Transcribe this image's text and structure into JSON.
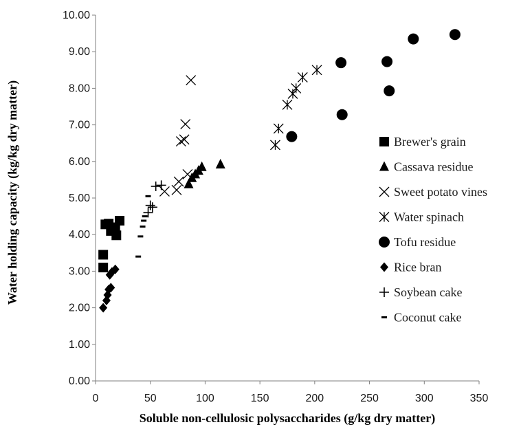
{
  "chart_data": {
    "type": "scatter",
    "xlabel": "Soluble non-cellulosic polysaccharides (g/kg dry matter)",
    "ylabel": "Water holding capacity (kg/kg dry matter)",
    "xlim": [
      0,
      350
    ],
    "ylim": [
      0,
      10
    ],
    "x_ticks": [
      "0",
      "50",
      "100",
      "150",
      "200",
      "250",
      "300",
      "350"
    ],
    "y_ticks": [
      "0.00",
      "1.00",
      "2.00",
      "3.00",
      "4.00",
      "5.00",
      "6.00",
      "7.00",
      "8.00",
      "9.00",
      "10.00"
    ],
    "grid": false,
    "legend_position": "right",
    "series": [
      {
        "name": "Brewer's grain",
        "marker": "square",
        "points": [
          [
            7,
            3.45
          ],
          [
            7,
            3.1
          ],
          [
            12,
            4.3
          ],
          [
            9,
            4.28
          ],
          [
            14,
            4.1
          ],
          [
            18,
            4.2
          ],
          [
            19,
            3.98
          ],
          [
            22,
            4.38
          ]
        ]
      },
      {
        "name": "Cassava residue",
        "marker": "triangle",
        "points": [
          [
            85,
            5.38
          ],
          [
            88,
            5.55
          ],
          [
            91,
            5.65
          ],
          [
            94,
            5.75
          ],
          [
            97,
            5.85
          ],
          [
            114,
            5.92
          ]
        ]
      },
      {
        "name": "Sweet potato vines",
        "marker": "x",
        "points": [
          [
            63,
            5.18
          ],
          [
            74,
            5.22
          ],
          [
            76,
            5.45
          ],
          [
            78,
            6.55
          ],
          [
            81,
            6.6
          ],
          [
            82,
            7.02
          ],
          [
            84,
            5.65
          ],
          [
            87,
            8.22
          ]
        ]
      },
      {
        "name": "Water spinach",
        "marker": "asterisk",
        "points": [
          [
            164,
            6.45
          ],
          [
            167,
            6.9
          ],
          [
            175,
            7.55
          ],
          [
            180,
            7.85
          ],
          [
            183,
            8.0
          ],
          [
            189,
            8.3
          ],
          [
            202,
            8.5
          ]
        ]
      },
      {
        "name": "Tofu residue",
        "marker": "circle",
        "points": [
          [
            179,
            6.68
          ],
          [
            224,
            8.7
          ],
          [
            225,
            7.28
          ],
          [
            266,
            8.73
          ],
          [
            268,
            7.93
          ],
          [
            290,
            9.35
          ],
          [
            328,
            9.47
          ]
        ]
      },
      {
        "name": "Rice bran",
        "marker": "diamond",
        "points": [
          [
            7,
            2.0
          ],
          [
            10,
            2.2
          ],
          [
            11,
            2.35
          ],
          [
            12,
            2.5
          ],
          [
            14,
            2.55
          ],
          [
            13,
            2.9
          ],
          [
            15,
            2.98
          ],
          [
            18,
            3.05
          ]
        ]
      },
      {
        "name": "Soybean cake",
        "marker": "plus",
        "points": [
          [
            48,
            4.6
          ],
          [
            50,
            4.8
          ],
          [
            52,
            4.75
          ],
          [
            55,
            5.32
          ],
          [
            60,
            5.35
          ]
        ]
      },
      {
        "name": "Coconut cake",
        "marker": "dash",
        "points": [
          [
            39,
            3.4
          ],
          [
            41,
            3.95
          ],
          [
            43,
            4.22
          ],
          [
            44,
            4.38
          ],
          [
            45,
            4.5
          ],
          [
            48,
            5.05
          ]
        ]
      }
    ]
  }
}
